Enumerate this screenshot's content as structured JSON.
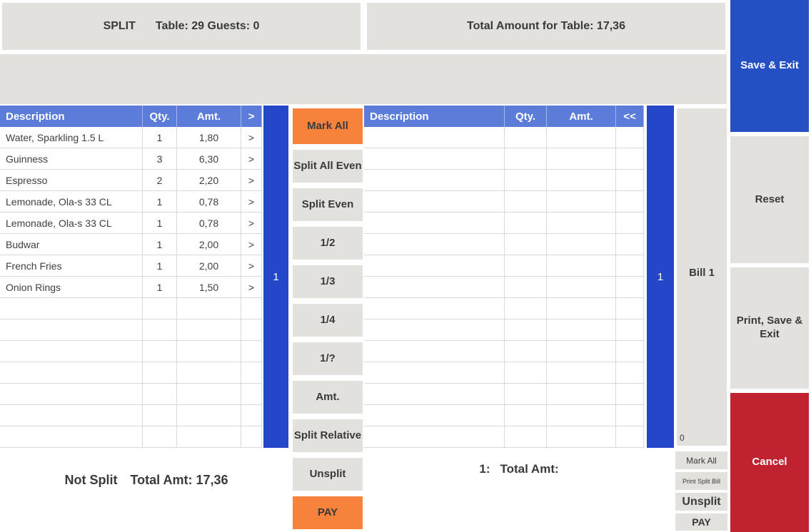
{
  "header": {
    "split_label": "SPLIT",
    "table_info": "Table: 29 Guests: 0",
    "total_for_table": "Total Amount for Table: 17,36"
  },
  "left_table": {
    "columns": [
      "Description",
      "Qty.",
      "Amt.",
      ">"
    ],
    "rows": [
      {
        "description": "Water, Sparkling 1.5 L",
        "qty": "1",
        "amt": "1,80",
        "action": ">"
      },
      {
        "description": "Guinness",
        "qty": "3",
        "amt": "6,30",
        "action": ">"
      },
      {
        "description": "Espresso",
        "qty": "2",
        "amt": "2,20",
        "action": ">"
      },
      {
        "description": "Lemonade, Ola-s 33 CL",
        "qty": "1",
        "amt": "0,78",
        "action": ">"
      },
      {
        "description": "Lemonade, Ola-s 33 CL",
        "qty": "1",
        "amt": "0,78",
        "action": ">"
      },
      {
        "description": "Budwar",
        "qty": "1",
        "amt": "2,00",
        "action": ">"
      },
      {
        "description": "French Fries",
        "qty": "1",
        "amt": "2,00",
        "action": ">"
      },
      {
        "description": "Onion Rings",
        "qty": "1",
        "amt": "1,50",
        "action": ">"
      }
    ],
    "total_rows": 15
  },
  "right_table": {
    "columns": [
      "Description",
      "Qty.",
      "Amt.",
      "<<"
    ],
    "rows": [],
    "total_rows": 15
  },
  "left_bill_bar_label": "1",
  "right_bill_bar_label": "1",
  "split_buttons": [
    {
      "label": "Mark All",
      "accent": true
    },
    {
      "label": "Split All Even",
      "accent": false
    },
    {
      "label": "Split Even",
      "accent": false
    },
    {
      "label": "1/2",
      "accent": false
    },
    {
      "label": "1/3",
      "accent": false
    },
    {
      "label": "1/4",
      "accent": false
    },
    {
      "label": "1/?",
      "accent": false
    },
    {
      "label": "Amt.",
      "accent": false
    },
    {
      "label": "Split Relative",
      "accent": false
    },
    {
      "label": "Unsplit",
      "accent": false
    },
    {
      "label": "PAY",
      "accent": true
    }
  ],
  "bill_panel": {
    "title": "Bill 1",
    "counter": "0",
    "buttons": [
      {
        "label": "Mark All",
        "size": "sm"
      },
      {
        "label": "Print Split Bill",
        "size": "xs"
      },
      {
        "label": "Unsplit",
        "size": "lg"
      },
      {
        "label": "PAY",
        "size": "md"
      }
    ]
  },
  "action_buttons": [
    {
      "label": "Save & Exit",
      "style": "blue"
    },
    {
      "label": "Reset",
      "style": "gray"
    },
    {
      "label": "Print, Save & Exit",
      "style": "gray"
    },
    {
      "label": "Cancel",
      "style": "red"
    }
  ],
  "footer": {
    "not_split_label": "Not Split",
    "not_split_total": "Total Amt: 17,36",
    "bill_prefix": "1:",
    "bill_total_label": "Total Amt:"
  },
  "colors": {
    "panel_gray": "#e2e1dd",
    "table_header_blue": "#5b7cd9",
    "bill_bar_blue": "#2347c8",
    "save_exit_blue": "#2450c3",
    "accent_orange": "#f6823c",
    "cancel_red": "#c1222f",
    "grid_line": "#d9d8d5",
    "text_dark": "#3a3a3a"
  }
}
